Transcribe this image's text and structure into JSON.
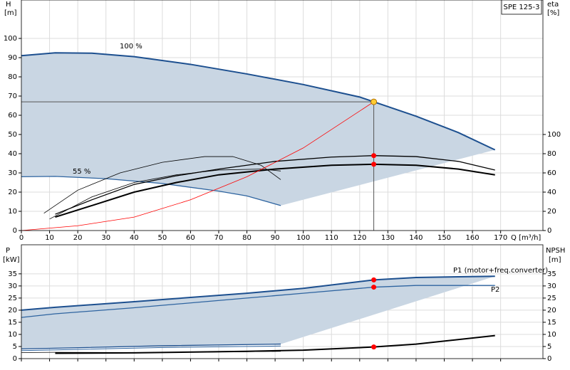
{
  "chart_data": [
    {
      "type": "line",
      "title": "SPE 125-3",
      "x_label": "Q [m³/h]",
      "y_label": "H",
      "y_unit": "[m]",
      "y2_label": "eta",
      "y2_unit": "[%]",
      "xlim": [
        0,
        185
      ],
      "xticks": [
        0,
        10,
        20,
        30,
        40,
        50,
        60,
        70,
        80,
        90,
        100,
        110,
        120,
        130,
        140,
        150,
        160,
        170
      ],
      "ylim": [
        0,
        120
      ],
      "yticks": [
        0,
        10,
        20,
        30,
        40,
        50,
        60,
        70,
        80,
        90,
        100
      ],
      "y2lim": [
        0,
        240
      ],
      "y2ticks": [
        0,
        20,
        40,
        60,
        80,
        100
      ],
      "grid": true,
      "series": [
        {
          "name": "100 %",
          "color": "#1c4f8f",
          "width": 2,
          "x": [
            0,
            12,
            25,
            40,
            60,
            80,
            100,
            120,
            125,
            140,
            155,
            168
          ],
          "values": [
            91,
            92.5,
            92.3,
            90.5,
            86.5,
            81.5,
            76,
            69.5,
            67,
            59.5,
            51,
            42
          ]
        },
        {
          "name": "55 %",
          "color": "#2e64a0",
          "width": 1.3,
          "x": [
            0,
            12,
            30,
            50,
            70,
            80,
            92
          ],
          "values": [
            28,
            28.2,
            27,
            24.5,
            20.5,
            18,
            13
          ]
        },
        {
          "color": "#000000",
          "width": 2,
          "axis": "y2",
          "x": [
            12,
            25,
            40,
            55,
            70,
            90,
            110,
            125,
            140,
            155,
            168
          ],
          "values": [
            14,
            26,
            40,
            50,
            58,
            64,
            68,
            69,
            68,
            64,
            58
          ]
        },
        {
          "color": "#000000",
          "width": 1.3,
          "axis": "y2",
          "x": [
            12,
            25,
            40,
            55,
            70,
            90,
            110,
            125,
            140,
            155,
            168
          ],
          "values": [
            17,
            32,
            48,
            57,
            64,
            72,
            76.5,
            78,
            77,
            72,
            63
          ]
        },
        {
          "color": "#000000",
          "width": 0.8,
          "axis": "y2",
          "x": [
            8,
            20,
            35,
            50,
            65,
            75,
            85,
            92
          ],
          "values": [
            18,
            42,
            60,
            71,
            77,
            77,
            68,
            53
          ]
        },
        {
          "color": "#000000",
          "width": 0.8,
          "axis": "y2",
          "x": [
            10,
            25,
            40,
            55,
            70,
            85,
            92
          ],
          "values": [
            12,
            35,
            50,
            58,
            63,
            64,
            62
          ]
        },
        {
          "color": "#ff0000",
          "width": 0.8,
          "x": [
            0,
            20,
            40,
            60,
            80,
            100,
            125
          ],
          "values": [
            0,
            2.5,
            7,
            16,
            28,
            43,
            67
          ]
        }
      ],
      "markers": [
        {
          "x": 125,
          "y": 78,
          "axis": "y2",
          "color": "#ff0000"
        },
        {
          "x": 125,
          "y": 69,
          "axis": "y2",
          "color": "#ff0000"
        }
      ],
      "operating_point": {
        "x": 125,
        "y": 67,
        "color": "#ffcc33"
      }
    },
    {
      "type": "line",
      "y_label": "P",
      "y_unit": "[kW]",
      "y2_label": "NPSH",
      "y2_unit": "[m]",
      "xlim": [
        0,
        185
      ],
      "ylim": [
        0,
        47
      ],
      "yticks": [
        0,
        5,
        10,
        15,
        20,
        25,
        30,
        35
      ],
      "y2lim": [
        0,
        47
      ],
      "y2ticks": [
        0,
        5,
        10,
        15,
        20,
        25,
        30,
        35
      ],
      "grid": true,
      "series": [
        {
          "name": "P1 (motor+freq.converter)",
          "color": "#1c4f8f",
          "width": 2,
          "x": [
            0,
            12,
            40,
            80,
            100,
            125,
            140,
            168
          ],
          "values": [
            20,
            21.2,
            23.5,
            27,
            29,
            32.5,
            33.5,
            34
          ]
        },
        {
          "name": "P2",
          "color": "#2e64a0",
          "width": 1.3,
          "x": [
            0,
            12,
            40,
            80,
            100,
            125,
            140,
            168
          ],
          "values": [
            17,
            18.5,
            21,
            25,
            27,
            29.5,
            30.2,
            30.2
          ]
        },
        {
          "color": "#1c4f8f",
          "width": 1.3,
          "x": [
            0,
            12,
            50,
            92
          ],
          "values": [
            4,
            4.3,
            5.3,
            6
          ]
        },
        {
          "color": "#2e64a0",
          "width": 1,
          "x": [
            0,
            12,
            50,
            92
          ],
          "values": [
            3.3,
            3.6,
            4.6,
            5.2
          ]
        },
        {
          "color": "#000000",
          "width": 2,
          "axis": "y2",
          "x": [
            12,
            40,
            80,
            100,
            125,
            140,
            168
          ],
          "values": [
            2.2,
            2.4,
            3,
            3.5,
            4.8,
            6,
            9.5
          ]
        },
        {
          "color": "#000000",
          "width": 0.8,
          "axis": "y2",
          "x": [
            0,
            12,
            50,
            92
          ],
          "values": [
            2.5,
            2.6,
            2.5,
            3
          ]
        }
      ],
      "markers": [
        {
          "x": 125,
          "y": 32.5,
          "color": "#ff0000"
        },
        {
          "x": 125,
          "y": 29.5,
          "color": "#ff0000"
        },
        {
          "x": 125,
          "y": 4.8,
          "axis": "y2",
          "color": "#ff0000"
        }
      ]
    }
  ]
}
